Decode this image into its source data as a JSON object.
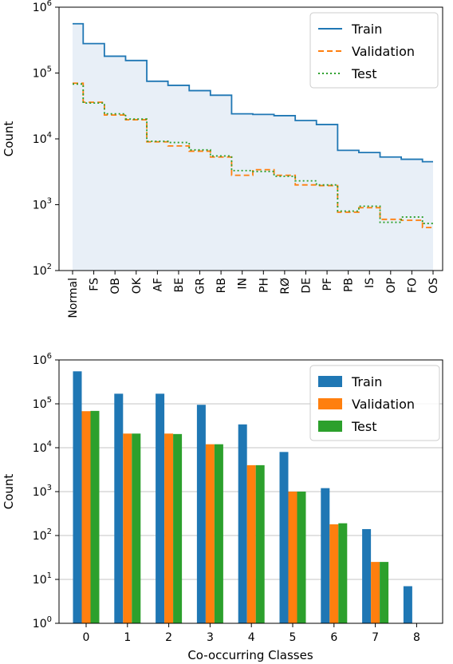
{
  "chart_data": [
    {
      "type": "line",
      "step": true,
      "ylabel": "Count",
      "xlabel": "",
      "yscale": "log",
      "ylim": [
        100,
        1000000
      ],
      "grid": false,
      "legend_position": "top-right",
      "categories": [
        "Normal",
        "FS",
        "OB",
        "OK",
        "AF",
        "BE",
        "GR",
        "RB",
        "IN",
        "PH",
        "RØ",
        "DE",
        "PF",
        "PB",
        "IS",
        "OP",
        "FO",
        "OS"
      ],
      "ytick_labels": [
        {
          "value": 100,
          "base": "10",
          "exp": "2"
        },
        {
          "value": 1000,
          "base": "10",
          "exp": "3"
        },
        {
          "value": 10000,
          "base": "10",
          "exp": "4"
        },
        {
          "value": 100000,
          "base": "10",
          "exp": "5"
        },
        {
          "value": 1000000,
          "base": "10",
          "exp": "6"
        }
      ],
      "series": [
        {
          "name": "Train",
          "color": "#1f77b4",
          "style": "solid",
          "fill": "#e8eff7",
          "values": [
            560000,
            280000,
            180000,
            155000,
            75000,
            65000,
            54000,
            46000,
            24000,
            23500,
            22500,
            19000,
            16500,
            6700,
            6200,
            5300,
            4900,
            4500
          ]
        },
        {
          "name": "Validation",
          "color": "#ff7f0e",
          "style": "dashed",
          "values": [
            70000,
            36000,
            23000,
            19500,
            9000,
            7800,
            6500,
            5300,
            2800,
            3400,
            2800,
            2000,
            1950,
            770,
            900,
            600,
            580,
            450
          ]
        },
        {
          "name": "Test",
          "color": "#2ca02c",
          "style": "dotted",
          "values": [
            68000,
            35000,
            24000,
            20000,
            9200,
            8800,
            6800,
            5500,
            3300,
            3200,
            2700,
            2300,
            2000,
            800,
            950,
            540,
            650,
            520
          ]
        }
      ]
    },
    {
      "type": "bar",
      "xlabel": "Co-occurring Classes",
      "ylabel": "Count",
      "yscale": "log",
      "ylim": [
        1,
        1000000
      ],
      "grid": true,
      "legend_position": "top-right",
      "categories": [
        "0",
        "1",
        "2",
        "3",
        "4",
        "5",
        "6",
        "7",
        "8"
      ],
      "ytick_labels": [
        {
          "value": 1,
          "base": "10",
          "exp": "0"
        },
        {
          "value": 10,
          "base": "10",
          "exp": "1"
        },
        {
          "value": 100,
          "base": "10",
          "exp": "2"
        },
        {
          "value": 1000,
          "base": "10",
          "exp": "3"
        },
        {
          "value": 10000,
          "base": "10",
          "exp": "4"
        },
        {
          "value": 100000,
          "base": "10",
          "exp": "5"
        },
        {
          "value": 1000000,
          "base": "10",
          "exp": "6"
        }
      ],
      "series": [
        {
          "name": "Train",
          "color": "#1f77b4",
          "values": [
            550000,
            170000,
            170000,
            95000,
            34000,
            8000,
            1200,
            140,
            7
          ]
        },
        {
          "name": "Validation",
          "color": "#ff7f0e",
          "values": [
            68000,
            21000,
            21000,
            12000,
            4000,
            1000,
            180,
            25,
            null
          ]
        },
        {
          "name": "Test",
          "color": "#2ca02c",
          "values": [
            69000,
            21000,
            20500,
            12000,
            4000,
            1000,
            190,
            25,
            null
          ]
        }
      ]
    }
  ]
}
